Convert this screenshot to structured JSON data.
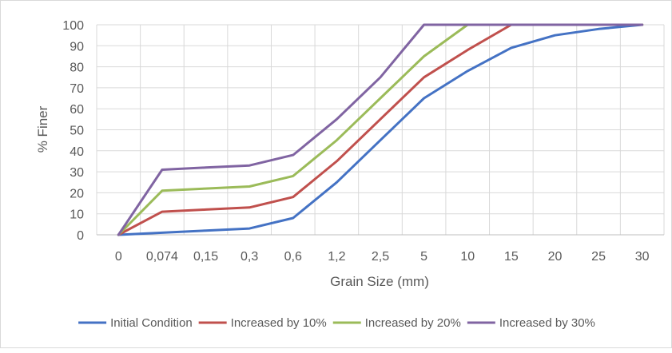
{
  "chart_data": {
    "type": "line",
    "title": "",
    "xlabel": "Grain Size (mm)",
    "ylabel": "% Finer",
    "categories": [
      "0",
      "0,074",
      "0,15",
      "0,3",
      "0,6",
      "1,2",
      "2,5",
      "5",
      "10",
      "15",
      "20",
      "25",
      "30"
    ],
    "ylim": [
      0,
      100
    ],
    "yticks": [
      "0",
      "10",
      "20",
      "30",
      "40",
      "50",
      "60",
      "70",
      "80",
      "90",
      "100"
    ],
    "grid": true,
    "legend_position": "bottom",
    "series": [
      {
        "name": "Initial Condition",
        "color": "#4472c4",
        "values": [
          0,
          1,
          2,
          3,
          8,
          25,
          45,
          65,
          78,
          89,
          95,
          98,
          100
        ]
      },
      {
        "name": "Increased by 10%",
        "color": "#c0504d",
        "values": [
          0,
          11,
          12,
          13,
          18,
          35,
          55,
          75,
          88,
          100,
          100,
          100,
          100
        ]
      },
      {
        "name": "Increased by 20%",
        "color": "#9bbb59",
        "values": [
          0,
          21,
          22,
          23,
          28,
          45,
          65,
          85,
          100,
          100,
          100,
          100,
          100
        ]
      },
      {
        "name": "Increased by 30%",
        "color": "#8064a2",
        "values": [
          0,
          31,
          32,
          33,
          38,
          55,
          75,
          100,
          100,
          100,
          100,
          100,
          100
        ]
      }
    ]
  }
}
